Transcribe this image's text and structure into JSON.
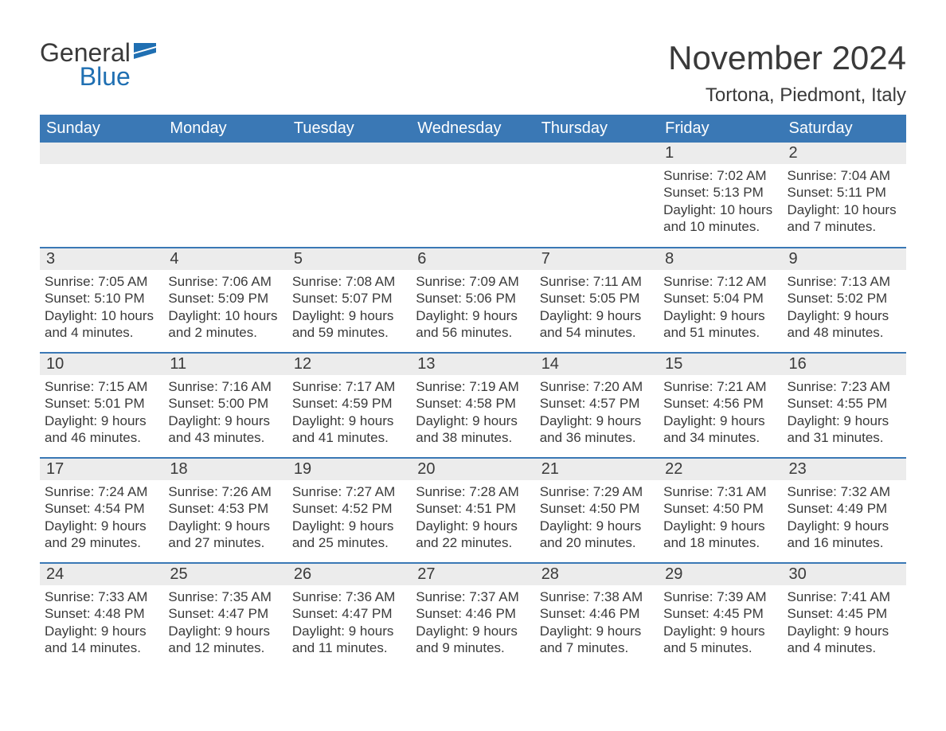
{
  "brand": {
    "word1": "General",
    "word2": "Blue",
    "flag_color": "#1f6fb2"
  },
  "title": "November 2024",
  "location": "Tortona, Piedmont, Italy",
  "colors": {
    "header_bg": "#3a78b5",
    "header_text": "#ffffff",
    "row_separator": "#3a78b5",
    "daynum_bg": "#ececec",
    "body_text": "#3a3a3a",
    "page_bg": "#ffffff"
  },
  "typography": {
    "month_title_pt": 42,
    "location_pt": 24,
    "dayheader_pt": 20,
    "daynum_pt": 20,
    "body_pt": 17,
    "font_family": "Arial"
  },
  "day_headers": [
    "Sunday",
    "Monday",
    "Tuesday",
    "Wednesday",
    "Thursday",
    "Friday",
    "Saturday"
  ],
  "weeks": [
    [
      null,
      null,
      null,
      null,
      null,
      {
        "n": "1",
        "sunrise": "7:02 AM",
        "sunset": "5:13 PM",
        "daylight": "10 hours and 10 minutes."
      },
      {
        "n": "2",
        "sunrise": "7:04 AM",
        "sunset": "5:11 PM",
        "daylight": "10 hours and 7 minutes."
      }
    ],
    [
      {
        "n": "3",
        "sunrise": "7:05 AM",
        "sunset": "5:10 PM",
        "daylight": "10 hours and 4 minutes."
      },
      {
        "n": "4",
        "sunrise": "7:06 AM",
        "sunset": "5:09 PM",
        "daylight": "10 hours and 2 minutes."
      },
      {
        "n": "5",
        "sunrise": "7:08 AM",
        "sunset": "5:07 PM",
        "daylight": "9 hours and 59 minutes."
      },
      {
        "n": "6",
        "sunrise": "7:09 AM",
        "sunset": "5:06 PM",
        "daylight": "9 hours and 56 minutes."
      },
      {
        "n": "7",
        "sunrise": "7:11 AM",
        "sunset": "5:05 PM",
        "daylight": "9 hours and 54 minutes."
      },
      {
        "n": "8",
        "sunrise": "7:12 AM",
        "sunset": "5:04 PM",
        "daylight": "9 hours and 51 minutes."
      },
      {
        "n": "9",
        "sunrise": "7:13 AM",
        "sunset": "5:02 PM",
        "daylight": "9 hours and 48 minutes."
      }
    ],
    [
      {
        "n": "10",
        "sunrise": "7:15 AM",
        "sunset": "5:01 PM",
        "daylight": "9 hours and 46 minutes."
      },
      {
        "n": "11",
        "sunrise": "7:16 AM",
        "sunset": "5:00 PM",
        "daylight": "9 hours and 43 minutes."
      },
      {
        "n": "12",
        "sunrise": "7:17 AM",
        "sunset": "4:59 PM",
        "daylight": "9 hours and 41 minutes."
      },
      {
        "n": "13",
        "sunrise": "7:19 AM",
        "sunset": "4:58 PM",
        "daylight": "9 hours and 38 minutes."
      },
      {
        "n": "14",
        "sunrise": "7:20 AM",
        "sunset": "4:57 PM",
        "daylight": "9 hours and 36 minutes."
      },
      {
        "n": "15",
        "sunrise": "7:21 AM",
        "sunset": "4:56 PM",
        "daylight": "9 hours and 34 minutes."
      },
      {
        "n": "16",
        "sunrise": "7:23 AM",
        "sunset": "4:55 PM",
        "daylight": "9 hours and 31 minutes."
      }
    ],
    [
      {
        "n": "17",
        "sunrise": "7:24 AM",
        "sunset": "4:54 PM",
        "daylight": "9 hours and 29 minutes."
      },
      {
        "n": "18",
        "sunrise": "7:26 AM",
        "sunset": "4:53 PM",
        "daylight": "9 hours and 27 minutes."
      },
      {
        "n": "19",
        "sunrise": "7:27 AM",
        "sunset": "4:52 PM",
        "daylight": "9 hours and 25 minutes."
      },
      {
        "n": "20",
        "sunrise": "7:28 AM",
        "sunset": "4:51 PM",
        "daylight": "9 hours and 22 minutes."
      },
      {
        "n": "21",
        "sunrise": "7:29 AM",
        "sunset": "4:50 PM",
        "daylight": "9 hours and 20 minutes."
      },
      {
        "n": "22",
        "sunrise": "7:31 AM",
        "sunset": "4:50 PM",
        "daylight": "9 hours and 18 minutes."
      },
      {
        "n": "23",
        "sunrise": "7:32 AM",
        "sunset": "4:49 PM",
        "daylight": "9 hours and 16 minutes."
      }
    ],
    [
      {
        "n": "24",
        "sunrise": "7:33 AM",
        "sunset": "4:48 PM",
        "daylight": "9 hours and 14 minutes."
      },
      {
        "n": "25",
        "sunrise": "7:35 AM",
        "sunset": "4:47 PM",
        "daylight": "9 hours and 12 minutes."
      },
      {
        "n": "26",
        "sunrise": "7:36 AM",
        "sunset": "4:47 PM",
        "daylight": "9 hours and 11 minutes."
      },
      {
        "n": "27",
        "sunrise": "7:37 AM",
        "sunset": "4:46 PM",
        "daylight": "9 hours and 9 minutes."
      },
      {
        "n": "28",
        "sunrise": "7:38 AM",
        "sunset": "4:46 PM",
        "daylight": "9 hours and 7 minutes."
      },
      {
        "n": "29",
        "sunrise": "7:39 AM",
        "sunset": "4:45 PM",
        "daylight": "9 hours and 5 minutes."
      },
      {
        "n": "30",
        "sunrise": "7:41 AM",
        "sunset": "4:45 PM",
        "daylight": "9 hours and 4 minutes."
      }
    ]
  ],
  "labels": {
    "sunrise": "Sunrise: ",
    "sunset": "Sunset: ",
    "daylight": "Daylight: "
  }
}
